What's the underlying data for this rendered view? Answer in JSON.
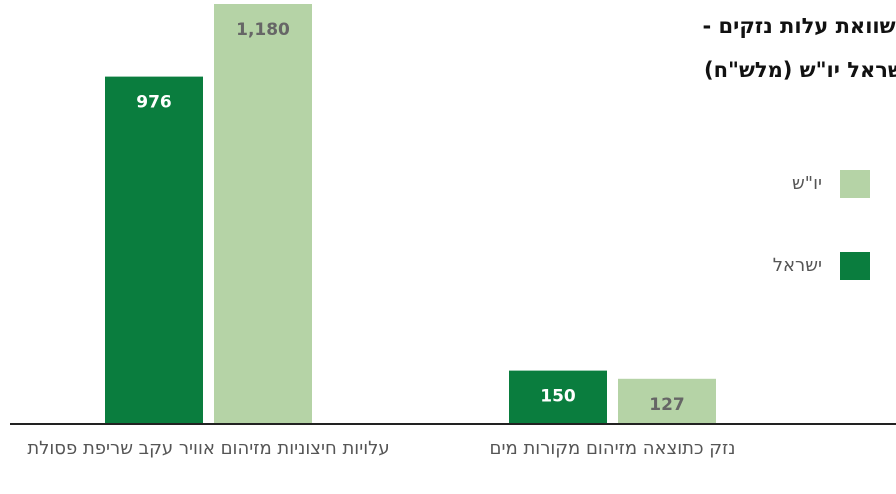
{
  "chart_data": {
    "type": "bar",
    "title": "השוואת עלות נזקים - ישראל יו\"ש (מלש\"ח)",
    "categories": [
      "עלויות חיצוניות מזיהום אוויר עקב שריפת פסולת",
      "נזק כתוצאה מזיהום מקורות מים"
    ],
    "series": [
      {
        "name": "יו\"ש",
        "color": "#b5d3a6",
        "values": [
          1180,
          127
        ],
        "value_labels": [
          "1,180",
          "127"
        ]
      },
      {
        "name": "ישראל",
        "color": "#0a7d3e",
        "values": [
          976,
          150
        ],
        "value_labels": [
          "976",
          "150"
        ]
      }
    ]
  }
}
